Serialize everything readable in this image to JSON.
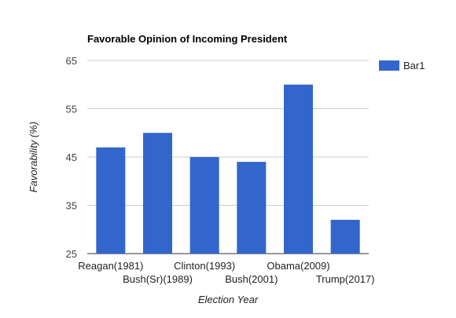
{
  "chart_data": {
    "type": "bar",
    "title": "Favorable Opinion of Incoming President",
    "xlabel": "Election Year",
    "ylabel": "Favorability (%)",
    "categories": [
      "Reagan(1981)",
      "Bush(Sr)(1989)",
      "Clinton(1993)",
      "Bush(2001)",
      "Obama(2009)",
      "Trump(2017)"
    ],
    "series": [
      {
        "name": "Bar1",
        "values": [
          47,
          50,
          45,
          44,
          60,
          32
        ]
      }
    ],
    "ylim": [
      25,
      65
    ],
    "yticks": [
      25,
      35,
      45,
      55,
      65
    ],
    "grid": true,
    "legend": "right",
    "colors": {
      "bar": "#3366cc",
      "grid": "#cccccc",
      "axis": "#333333",
      "text": "#222222"
    }
  }
}
